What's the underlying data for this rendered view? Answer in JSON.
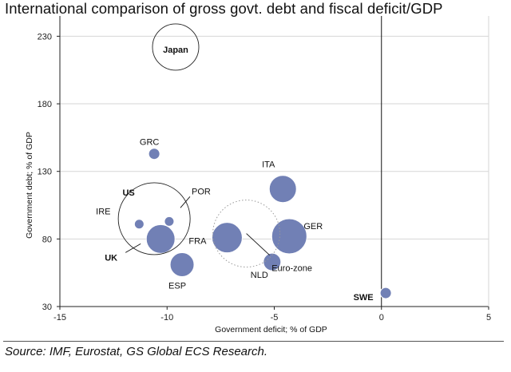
{
  "chart_data": {
    "type": "scatter",
    "title": "International comparison of gross govt. debt and fiscal deficit/GDP",
    "xlabel": "Government deficit; % of GDP",
    "ylabel": "Government debt; % of GDP",
    "xlim": [
      -15,
      5
    ],
    "ylim": [
      30,
      245
    ],
    "xticks": [
      -15,
      -10,
      -5,
      0,
      5
    ],
    "yticks": [
      30,
      80,
      130,
      180,
      230
    ],
    "grid": "horizontal",
    "zero_line": 0,
    "points": [
      {
        "label": "GRC",
        "x": -10.6,
        "y": 143,
        "size": 7,
        "style": "filled"
      },
      {
        "label": "ITA",
        "x": -4.6,
        "y": 117,
        "size": 17,
        "style": "filled"
      },
      {
        "label": "POR",
        "x": -9.9,
        "y": 93,
        "size": 6,
        "style": "filled"
      },
      {
        "label": "IRE",
        "x": -11.3,
        "y": 91,
        "size": 6,
        "style": "filled"
      },
      {
        "label": "UK",
        "x": -10.3,
        "y": 80,
        "size": 18,
        "style": "filled"
      },
      {
        "label": "FRA",
        "x": -7.2,
        "y": 81,
        "size": 19,
        "style": "filled"
      },
      {
        "label": "GER",
        "x": -4.3,
        "y": 82,
        "size": 22,
        "style": "filled"
      },
      {
        "label": "ESP",
        "x": -9.3,
        "y": 61,
        "size": 15,
        "style": "filled"
      },
      {
        "label": "NLD",
        "x": -5.1,
        "y": 63,
        "size": 11,
        "style": "filled"
      },
      {
        "label": "SWE",
        "x": 0.2,
        "y": 40,
        "size": 7,
        "style": "filled"
      },
      {
        "label": "Japan",
        "x": -9.6,
        "y": 222,
        "size": 29,
        "style": "outline"
      },
      {
        "label": "US",
        "x": -10.6,
        "y": 95,
        "size": 45,
        "style": "outline"
      },
      {
        "label": "Euro-zone",
        "x": -6.3,
        "y": 84,
        "size": 42,
        "style": "dotted"
      }
    ],
    "source": "Source: IMF, Eurostat, GS Global ECS Research."
  },
  "colors": {
    "bubble_fill": "#7180b5",
    "bubble_stroke": "#ffffff",
    "grid": "#d6d6d6",
    "axis": "#222222",
    "zero_line": "#111111",
    "outline_circle": "#222222",
    "dotted_circle": "#999999"
  }
}
